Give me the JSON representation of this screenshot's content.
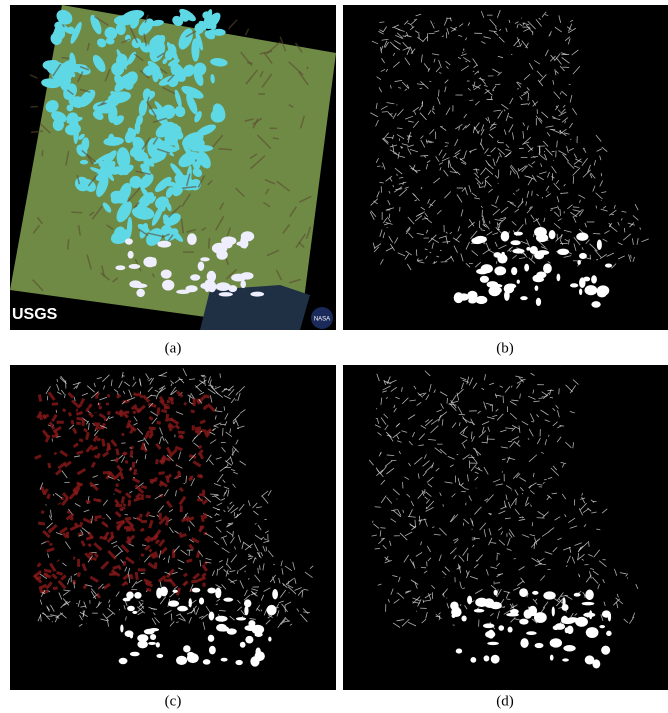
{
  "figure": {
    "panels": [
      {
        "label": "(a)",
        "watermarks": [
          "USGS",
          "NASA"
        ]
      },
      {
        "label": "(b)"
      },
      {
        "label": "(c)"
      },
      {
        "label": "(d)"
      }
    ]
  }
}
